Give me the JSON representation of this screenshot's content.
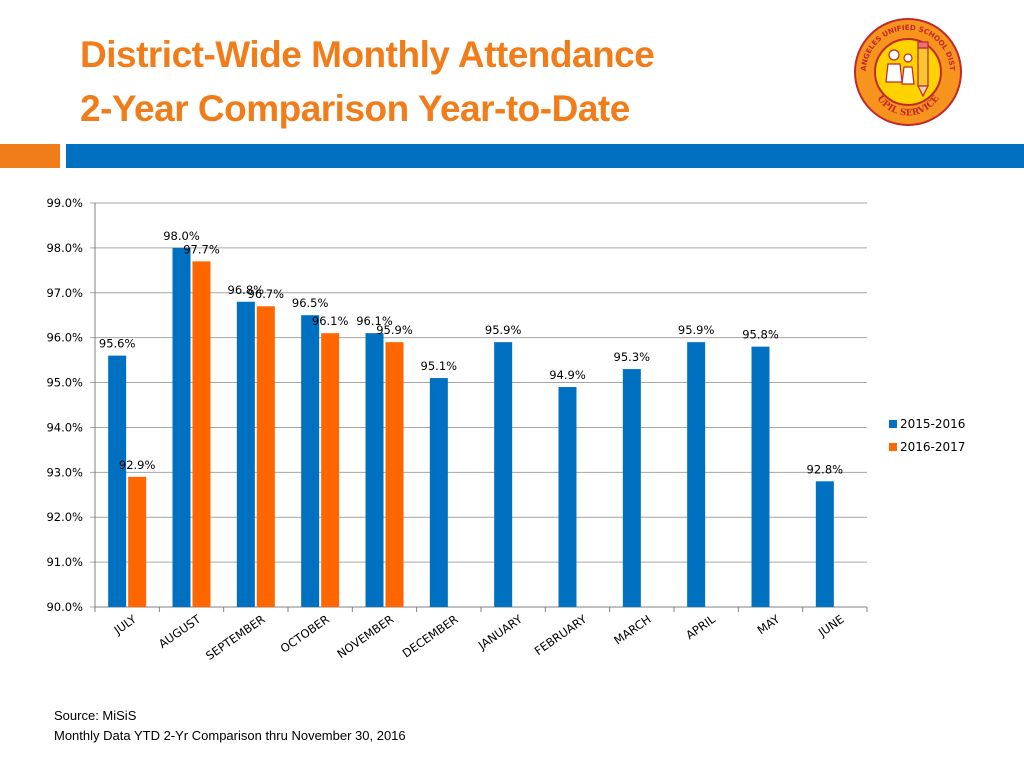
{
  "title": {
    "line1": "District-Wide Monthly Attendance",
    "line2": "2-Year Comparison Year-to-Date"
  },
  "logo": {
    "top_text": "LOS ANGELES UNIFIED SCHOOL DISTRICT",
    "bottom_text": "PUPIL SERVICES"
  },
  "colors": {
    "title": "#f07c1a",
    "series_2015": "#0070c0",
    "series_2016": "#ff6600",
    "accent_orange": "#f07c1a",
    "accent_blue": "#0070c0"
  },
  "source": {
    "line1": "Source: MiSiS",
    "line2": "Monthly  Data  YTD  2-Yr Comparison thru November 30, 2016"
  },
  "chart_data": {
    "type": "bar",
    "categories": [
      "JULY",
      "AUGUST",
      "SEPTEMBER",
      "OCTOBER",
      "NOVEMBER",
      "DECEMBER",
      "JANUARY",
      "FEBRUARY",
      "MARCH",
      "APRIL",
      "MAY",
      "JUNE"
    ],
    "series": [
      {
        "name": "2015-2016",
        "values": [
          95.6,
          98.0,
          96.8,
          96.5,
          96.1,
          95.1,
          95.9,
          94.9,
          95.3,
          95.9,
          95.8,
          92.8
        ],
        "labels": [
          "95.6%",
          "98.0%",
          "96.8%",
          "96.5%",
          "96.1%",
          "95.1%",
          "95.9%",
          "94.9%",
          "95.3%",
          "95.9%",
          "95.8%",
          "92.8%"
        ]
      },
      {
        "name": "2016-2017",
        "values": [
          92.9,
          97.7,
          96.7,
          96.1,
          95.9,
          null,
          null,
          null,
          null,
          null,
          null,
          null
        ],
        "labels": [
          "92.9%",
          "97.7%",
          "96.7%",
          "96.1%",
          "95.9%",
          null,
          null,
          null,
          null,
          null,
          null,
          null
        ]
      }
    ],
    "yticks": [
      "90.0%",
      "91.0%",
      "92.0%",
      "93.0%",
      "94.0%",
      "95.0%",
      "96.0%",
      "97.0%",
      "98.0%",
      "99.0%"
    ],
    "ylim": [
      90,
      99
    ],
    "grid": true,
    "legend": "right"
  }
}
